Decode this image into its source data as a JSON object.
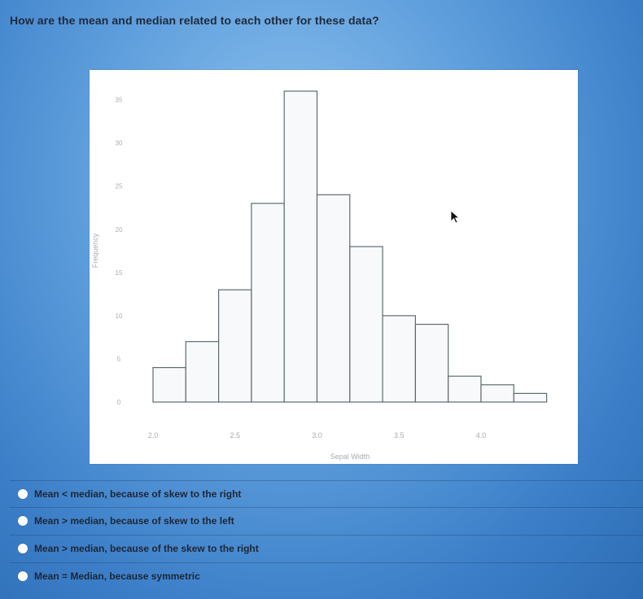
{
  "question": {
    "text": "How are the mean and median related to each other for these data?"
  },
  "chart_data": {
    "type": "bar",
    "xlabel": "Sepal Width",
    "ylabel": "Frequency",
    "x_tick_labels": [
      "2.0",
      "2.5",
      "3.0",
      "3.5",
      "4.0"
    ],
    "bin_start": 2.0,
    "bin_width": 0.2,
    "values": [
      4,
      7,
      13,
      23,
      36,
      24,
      18,
      10,
      9,
      3,
      2,
      1
    ],
    "ylim": [
      0,
      36
    ],
    "y_ticks": [
      0,
      5,
      10,
      15,
      20,
      25,
      30,
      35
    ],
    "grid": false,
    "bar_fill": "#f7f9fb",
    "bar_stroke": "#5f6b6e"
  },
  "options": [
    {
      "label": "Mean < median, because of skew to the right"
    },
    {
      "label": "Mean > median, because of skew to the left"
    },
    {
      "label": "Mean > median, because of the skew to the right"
    },
    {
      "label": "Mean = Median, because symmetric"
    }
  ],
  "icons": {
    "cursor": "arrow-cursor-icon",
    "radio": "radio-button-icon"
  },
  "colors": {
    "background": "#5f9fdd",
    "question_text": "#1e2a3c",
    "option_text": "#1d2635"
  }
}
